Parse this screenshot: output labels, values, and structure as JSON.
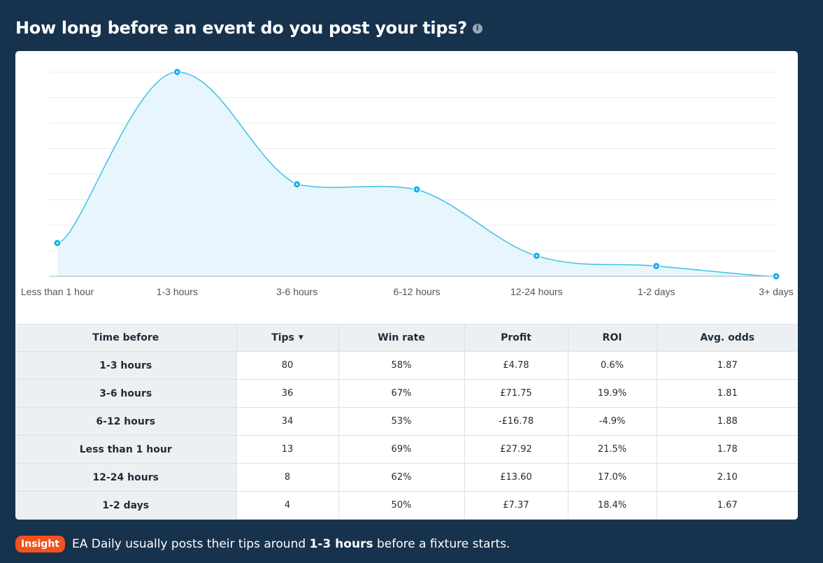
{
  "header": {
    "title": "How long before an event do you post your tips?",
    "info_icon": "info-circle-icon"
  },
  "chart_data": {
    "type": "area",
    "categories": [
      "Less than 1 hour",
      "1-3 hours",
      "3-6 hours",
      "6-12 hours",
      "12-24 hours",
      "1-2 days",
      "3+ days"
    ],
    "values": [
      13,
      80,
      36,
      34,
      8,
      4,
      0
    ],
    "ylim": [
      0,
      80
    ],
    "grid": true,
    "line_color": "#3ec1e6",
    "fill_color": "#e6f6fc",
    "point_color": "#16b2e8"
  },
  "table": {
    "headers": [
      "Time before",
      "Tips",
      "Win rate",
      "Profit",
      "ROI",
      "Avg. odds"
    ],
    "sort_indicator": "▼",
    "rows": [
      [
        "1-3 hours",
        "80",
        "58%",
        "£4.78",
        "0.6%",
        "1.87"
      ],
      [
        "3-6 hours",
        "36",
        "67%",
        "£71.75",
        "19.9%",
        "1.81"
      ],
      [
        "6-12 hours",
        "34",
        "53%",
        "-£16.78",
        "-4.9%",
        "1.88"
      ],
      [
        "Less than 1 hour",
        "13",
        "69%",
        "£27.92",
        "21.5%",
        "1.78"
      ],
      [
        "12-24 hours",
        "8",
        "62%",
        "£13.60",
        "17.0%",
        "2.10"
      ],
      [
        "1-2 days",
        "4",
        "50%",
        "£7.37",
        "18.4%",
        "1.67"
      ]
    ]
  },
  "insight": {
    "badge": "Insight",
    "text_before": "EA Daily usually posts their tips around ",
    "text_bold": "1-3 hours",
    "text_after": " before a fixture starts."
  }
}
